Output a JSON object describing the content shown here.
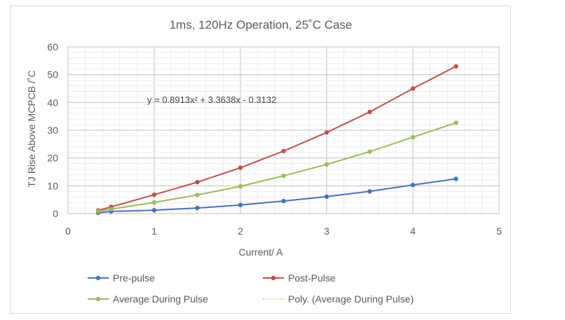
{
  "chart_data": {
    "type": "line",
    "title": "1ms, 120Hz Operation, 25˚C Case",
    "xlabel": "Current/ A",
    "ylabel": "TJ Rise Above MCPCB /˚C",
    "xlim": [
      0,
      5
    ],
    "ylim": [
      0,
      60
    ],
    "x_ticks": [
      "0",
      "1",
      "2",
      "3",
      "4",
      "5"
    ],
    "y_ticks": [
      "0",
      "10",
      "20",
      "30",
      "40",
      "50",
      "60"
    ],
    "grid": true,
    "legend_position": "bottom",
    "trendline_equation": "y = 0.8913x² + 3.3638x - 0.3132",
    "x": [
      0.35,
      0.5,
      1.0,
      1.5,
      2.0,
      2.5,
      3.0,
      3.5,
      4.0,
      4.5
    ],
    "series": [
      {
        "name": "Pre-pulse",
        "color": "#4472c4",
        "values": [
          0.3,
          0.8,
          1.2,
          2.0,
          3.1,
          4.5,
          6.1,
          8.0,
          10.3,
          12.5
        ]
      },
      {
        "name": "Post-Pulse",
        "color": "#c0504d",
        "values": [
          1.1,
          2.4,
          6.8,
          11.3,
          16.5,
          22.5,
          29.2,
          36.6,
          45.0,
          53.0
        ]
      },
      {
        "name": "Average During Pulse",
        "color": "#9bbb59",
        "values": [
          0.8,
          1.6,
          4.0,
          6.7,
          9.8,
          13.6,
          17.7,
          22.3,
          27.5,
          32.7
        ]
      },
      {
        "name": "Poly. (Average During Pulse)",
        "color": "#9bbb59",
        "style": "dotted",
        "trendline_of": "Average During Pulse"
      }
    ]
  }
}
